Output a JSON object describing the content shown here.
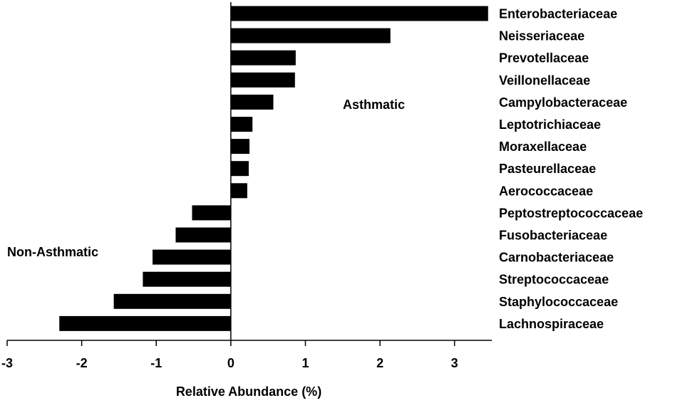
{
  "chart_data": {
    "type": "bar",
    "orientation": "horizontal",
    "title": "",
    "xlabel": "Relative Abundance (%)",
    "ylabel": "",
    "xlim": [
      -3,
      3.5
    ],
    "xticks": [
      -3,
      -2,
      -1,
      0,
      1,
      2,
      3
    ],
    "xtick_labels": [
      "-3",
      "-2",
      "-1",
      "0",
      "1",
      "2",
      "3"
    ],
    "grid": false,
    "bar_color": "#000000",
    "categories": [
      "Enterobacteriaceae",
      "Neisseriaceae",
      "Prevotellaceae",
      "Veillonellaceae",
      "Campylobacteraceae",
      "Leptotrichiaceae",
      "Moraxellaceae",
      "Pasteurellaceae",
      "Aerococcaceae",
      "Peptostreptococcaceae",
      "Fusobacteriaceae",
      "Carnobacteriaceae",
      "Streptococcaceae",
      "Staphylococcaceae",
      "Lachnospiraceae"
    ],
    "values": [
      3.45,
      2.14,
      0.87,
      0.86,
      0.57,
      0.29,
      0.25,
      0.24,
      0.22,
      -0.52,
      -0.74,
      -1.05,
      -1.18,
      -1.57,
      -2.3
    ],
    "annotations": [
      {
        "text": "Asthmatic",
        "side": "positive"
      },
      {
        "text": "Non-Asthmatic",
        "side": "negative"
      }
    ]
  }
}
